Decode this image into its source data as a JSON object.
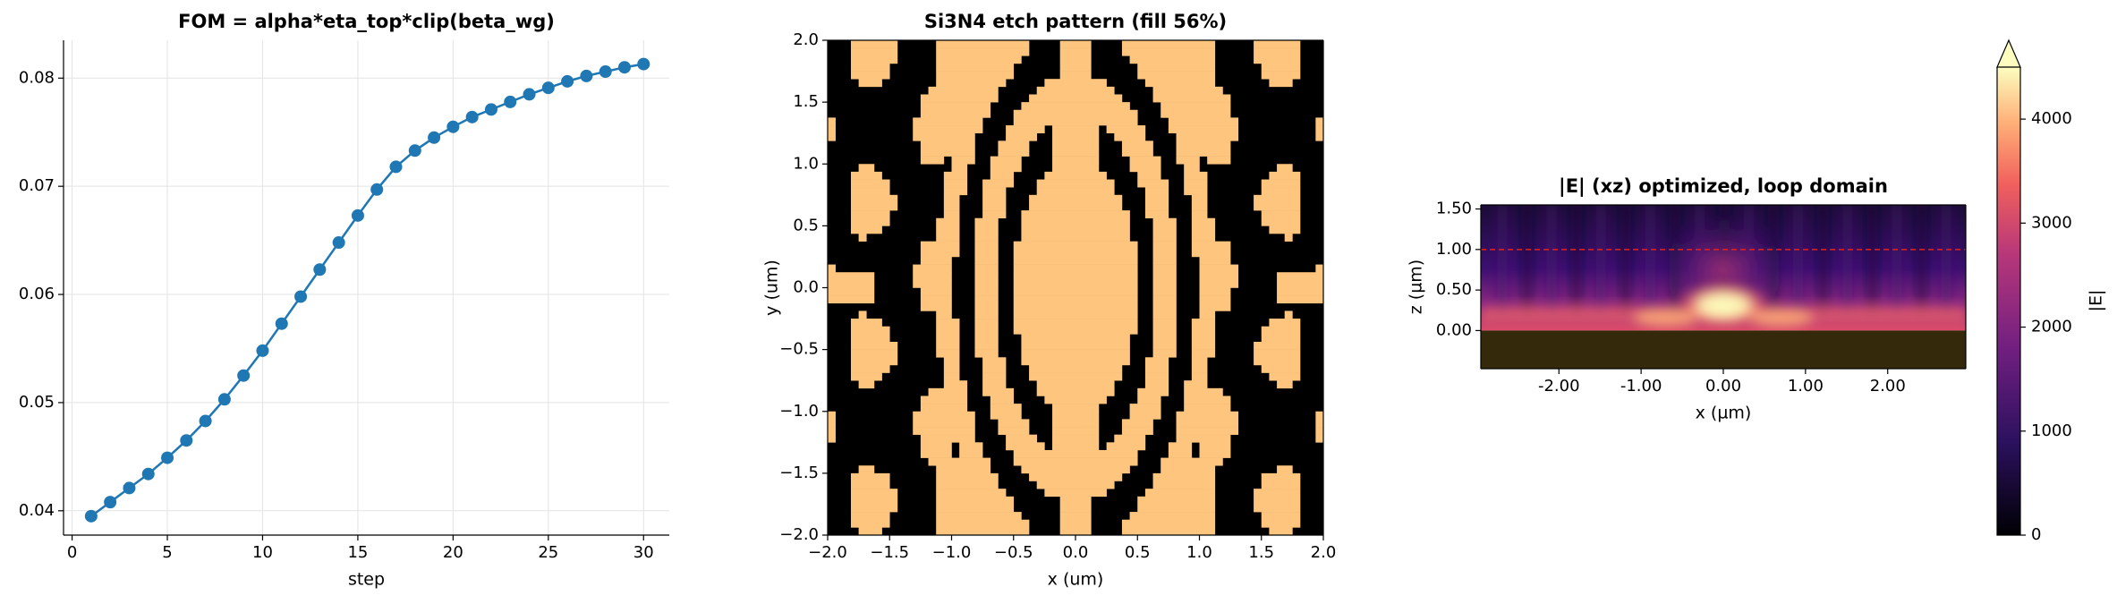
{
  "chart_data": [
    {
      "type": "line",
      "title": "FOM = alpha*eta_top*clip(beta_wg)",
      "xlabel": "step",
      "x": [
        1,
        2,
        3,
        4,
        5,
        6,
        7,
        8,
        9,
        10,
        11,
        12,
        13,
        14,
        15,
        16,
        17,
        18,
        19,
        20,
        21,
        22,
        23,
        24,
        25,
        26,
        27,
        28,
        29,
        30
      ],
      "series": [
        {
          "name": "FOM",
          "color": "#1f77b4",
          "values": [
            0.0395,
            0.0408,
            0.0421,
            0.0434,
            0.0449,
            0.0465,
            0.0483,
            0.0503,
            0.0525,
            0.0548,
            0.0573,
            0.0598,
            0.0623,
            0.0648,
            0.0673,
            0.0697,
            0.0718,
            0.0733,
            0.0745,
            0.0755,
            0.0764,
            0.0771,
            0.0778,
            0.0785,
            0.0791,
            0.0797,
            0.0802,
            0.0806,
            0.081,
            0.0813
          ]
        }
      ],
      "xlim": [
        -0.45,
        31.35
      ],
      "ylim": [
        0.03775,
        0.0835
      ],
      "xticks": [
        0,
        5,
        10,
        15,
        20,
        25,
        30
      ],
      "yticks": [
        0.04,
        0.05,
        0.06,
        0.07,
        0.08
      ],
      "grid": true
    },
    {
      "type": "pattern",
      "title": "Si3N4 etch pattern (fill 56%)",
      "xlabel": "x (um)",
      "ylabel": "y (um)",
      "colors": [
        "#000000",
        "#fdc57e"
      ],
      "xlim": [
        -2,
        2
      ],
      "ylim": [
        -2,
        2
      ],
      "xticks": [
        {
          "value": -2,
          "label": "−2.0"
        },
        {
          "value": -1.5,
          "label": "−1.5"
        },
        {
          "value": -1,
          "label": "−1.0"
        },
        {
          "value": -0.5,
          "label": "−0.5"
        },
        {
          "value": 0,
          "label": "0.0"
        },
        {
          "value": 0.5,
          "label": "0.5"
        },
        {
          "value": 1,
          "label": "1.0"
        },
        {
          "value": 1.5,
          "label": "1.5"
        },
        {
          "value": 2,
          "label": "2.0"
        }
      ],
      "yticks": [
        {
          "value": -2,
          "label": "−2.0"
        },
        {
          "value": -1.5,
          "label": "−1.5"
        },
        {
          "value": -1,
          "label": "−1.0"
        },
        {
          "value": -0.5,
          "label": "−0.5"
        },
        {
          "value": 0,
          "label": "0.0"
        },
        {
          "value": 0.5,
          "label": "0.5"
        },
        {
          "value": 1,
          "label": "1.0"
        },
        {
          "value": 1.5,
          "label": "1.5"
        },
        {
          "value": 2,
          "label": "2.0"
        }
      ]
    },
    {
      "type": "field",
      "title": "|E| (xz) optimized, loop domain",
      "xlabel": "x (µm)",
      "ylabel": "z (µm)",
      "colorbar_label": "|E|",
      "clim": [
        0,
        4500
      ],
      "cticks": [
        0,
        1000,
        2000,
        3000,
        4000
      ],
      "hline": 1.0,
      "hline_color": "#e8201a",
      "xlim": [
        -2.95,
        2.95
      ],
      "ylim": [
        -0.47,
        1.55
      ],
      "xticks": [
        {
          "value": -2,
          "label": "-2.00"
        },
        {
          "value": -1,
          "label": "-1.00"
        },
        {
          "value": 0,
          "label": "0.00"
        },
        {
          "value": 1,
          "label": "1.00"
        },
        {
          "value": 2,
          "label": "2.00"
        }
      ],
      "yticks": [
        {
          "value": 0,
          "label": "0.00"
        },
        {
          "value": 0.5,
          "label": "0.50"
        },
        {
          "value": 1,
          "label": "1.00"
        },
        {
          "value": 1.5,
          "label": "1.50"
        }
      ]
    }
  ]
}
